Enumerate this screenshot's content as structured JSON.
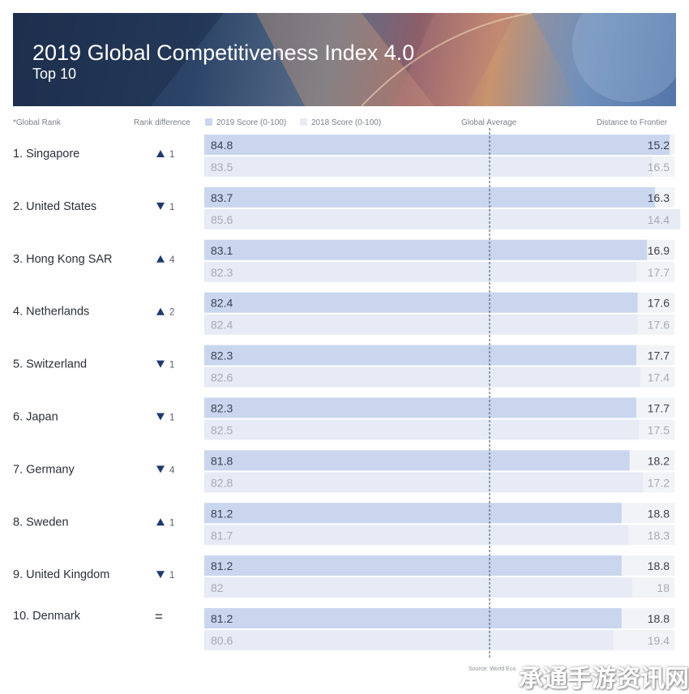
{
  "header": {
    "title": "2019 Global Competitiveness Index 4.0",
    "subtitle": "Top 10"
  },
  "columns": {
    "rank": "*Global Rank",
    "rank_diff": "Rank difference",
    "score_2019": "2019 Score (0-100)",
    "score_2018": "2018 Score (0-100)",
    "global_average": "Global Average",
    "distance": "Distance to Frontier"
  },
  "colors": {
    "bar_2019": "#c9d6ee",
    "bar_2018": "#e6ebf5",
    "frontier_bg": "#f2f3f6",
    "arrow": "#1f3a6e",
    "text_2019": "#3a4050",
    "text_2018": "#a5aab5",
    "average_line": "#3a4a66"
  },
  "chart_data": {
    "type": "bar",
    "categories": [
      "1. Singapore",
      "2. United States",
      "3. Hong Kong SAR",
      "4. Netherlands",
      "5. Switzerland",
      "6. Japan",
      "7. Germany",
      "8. Sweden",
      "9. United Kingdom",
      "10. Denmark"
    ],
    "rank_change": [
      {
        "direction": "up",
        "value": "1"
      },
      {
        "direction": "down",
        "value": "1"
      },
      {
        "direction": "up",
        "value": "4"
      },
      {
        "direction": "up",
        "value": "2"
      },
      {
        "direction": "down",
        "value": "1"
      },
      {
        "direction": "down",
        "value": "1"
      },
      {
        "direction": "down",
        "value": "4"
      },
      {
        "direction": "up",
        "value": "1"
      },
      {
        "direction": "down",
        "value": "1"
      },
      {
        "direction": "equal",
        "value": "="
      }
    ],
    "series": [
      {
        "name": "2019 Score (0-100)",
        "values": [
          "84.8",
          "83.7",
          "83.1",
          "82.4",
          "82.3",
          "82.3",
          "81.8",
          "81.2",
          "81.2",
          "81.2"
        ]
      },
      {
        "name": "2018 Score (0-100)",
        "values": [
          "83.5",
          "85.6",
          "82.3",
          "82.4",
          "82.6",
          "82.5",
          "82.8",
          "81.7",
          "82",
          "80.6"
        ]
      }
    ],
    "distance_to_frontier": {
      "score_2019": [
        "15.2",
        "16.3",
        "16.9",
        "17.6",
        "17.7",
        "17.7",
        "18.2",
        "18.8",
        "18.8",
        "18.8"
      ],
      "score_2018": [
        "16.5",
        "14.4",
        "17.7",
        "17.6",
        "17.4",
        "17.5",
        "17.2",
        "18.3",
        "18",
        "19.4"
      ]
    },
    "xlim": [
      0,
      100
    ],
    "reference_line": "Global Average",
    "grid": false,
    "legend": "top"
  },
  "footer": {
    "source": "Source: World Eco",
    "watermark": "承通手游资讯网"
  }
}
